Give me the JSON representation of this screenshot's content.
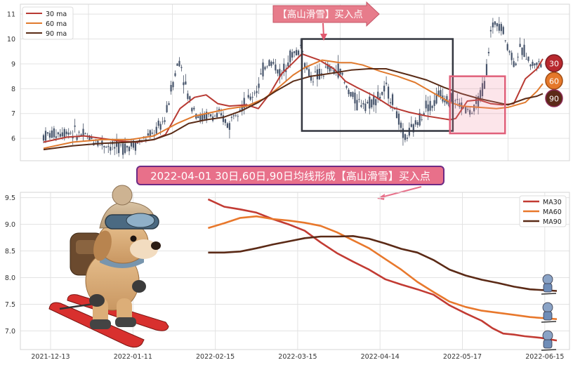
{
  "chart_data": [
    {
      "type": "line",
      "subtype": "candlestick-with-moving-averages",
      "ylim": [
        5.1,
        11.4
      ],
      "yticks": [
        6,
        7,
        8,
        9,
        10,
        11
      ],
      "grid": true,
      "legend_position": "top-left",
      "series": [
        {
          "name": "30 ma",
          "color": "#b83a33",
          "points": [
            [
              0,
              5.85
            ],
            [
              8,
              6.05
            ],
            [
              14,
              6.1
            ],
            [
              20,
              6.0
            ],
            [
              26,
              5.9
            ],
            [
              32,
              5.85
            ],
            [
              38,
              5.95
            ],
            [
              42,
              6.15
            ],
            [
              47,
              7.2
            ],
            [
              52,
              7.65
            ],
            [
              56,
              7.75
            ],
            [
              60,
              7.4
            ],
            [
              64,
              7.3
            ],
            [
              70,
              7.35
            ],
            [
              74,
              7.2
            ],
            [
              78,
              7.8
            ],
            [
              82,
              8.6
            ],
            [
              86,
              9.05
            ],
            [
              89,
              9.4
            ],
            [
              95,
              9.15
            ],
            [
              100,
              8.8
            ],
            [
              104,
              8.3
            ],
            [
              108,
              8.05
            ],
            [
              114,
              7.7
            ],
            [
              120,
              7.25
            ],
            [
              126,
              7.05
            ],
            [
              132,
              6.9
            ],
            [
              140,
              6.75
            ],
            [
              142,
              6.8
            ],
            [
              146,
              7.5
            ],
            [
              150,
              7.55
            ],
            [
              154,
              7.4
            ],
            [
              158,
              7.35
            ],
            [
              162,
              7.4
            ],
            [
              166,
              8.4
            ],
            [
              170,
              8.8
            ],
            [
              172,
              9.2
            ]
          ]
        },
        {
          "name": "60 ma",
          "color": "#e07a2e",
          "points": [
            [
              0,
              5.6
            ],
            [
              10,
              5.85
            ],
            [
              20,
              5.95
            ],
            [
              30,
              5.95
            ],
            [
              38,
              6.1
            ],
            [
              46,
              6.6
            ],
            [
              52,
              6.9
            ],
            [
              58,
              7.05
            ],
            [
              64,
              7.2
            ],
            [
              70,
              7.3
            ],
            [
              76,
              7.6
            ],
            [
              80,
              7.95
            ],
            [
              86,
              8.55
            ],
            [
              90,
              8.85
            ],
            [
              96,
              9.15
            ],
            [
              102,
              9.05
            ],
            [
              106,
              9.05
            ],
            [
              110,
              8.95
            ],
            [
              116,
              8.7
            ],
            [
              122,
              8.5
            ],
            [
              128,
              8.25
            ],
            [
              134,
              7.85
            ],
            [
              140,
              7.45
            ],
            [
              144,
              7.3
            ],
            [
              150,
              7.25
            ],
            [
              156,
              7.2
            ],
            [
              160,
              7.25
            ],
            [
              166,
              7.45
            ],
            [
              170,
              7.9
            ],
            [
              172,
              8.2
            ]
          ]
        },
        {
          "name": "90 ma",
          "color": "#5a2c17",
          "points": [
            [
              0,
              5.55
            ],
            [
              10,
              5.7
            ],
            [
              20,
              5.8
            ],
            [
              30,
              5.85
            ],
            [
              38,
              5.95
            ],
            [
              44,
              6.2
            ],
            [
              50,
              6.6
            ],
            [
              56,
              6.75
            ],
            [
              62,
              6.85
            ],
            [
              68,
              7.1
            ],
            [
              74,
              7.45
            ],
            [
              80,
              7.9
            ],
            [
              86,
              8.3
            ],
            [
              92,
              8.5
            ],
            [
              98,
              8.6
            ],
            [
              106,
              8.75
            ],
            [
              112,
              8.8
            ],
            [
              118,
              8.8
            ],
            [
              126,
              8.55
            ],
            [
              132,
              8.35
            ],
            [
              138,
              8.05
            ],
            [
              144,
              7.8
            ],
            [
              150,
              7.6
            ],
            [
              156,
              7.45
            ],
            [
              160,
              7.35
            ],
            [
              166,
              7.6
            ],
            [
              170,
              7.7
            ],
            [
              172,
              7.8
            ]
          ]
        }
      ],
      "price_envelope": {
        "x": [
          0,
          8,
          14,
          20,
          26,
          32,
          38,
          42,
          44,
          46,
          47,
          48,
          50,
          52,
          54,
          56,
          58,
          60,
          62,
          64,
          66,
          70,
          74,
          76,
          78,
          80,
          82,
          84,
          86,
          88,
          89,
          90,
          92,
          94,
          96,
          98,
          100,
          102,
          104,
          106,
          108,
          110,
          112,
          114,
          116,
          118,
          120,
          122,
          124,
          126,
          128,
          130,
          132,
          134,
          136,
          138,
          140,
          142,
          144,
          146,
          148,
          150,
          152,
          154,
          156,
          158,
          160,
          161,
          162,
          164,
          166,
          168,
          170,
          172
        ],
        "y": [
          6.1,
          6.3,
          6.1,
          5.8,
          5.6,
          5.8,
          6.2,
          6.8,
          8.0,
          8.9,
          9.2,
          8.6,
          7.6,
          7.2,
          6.8,
          6.9,
          6.9,
          6.9,
          6.8,
          6.5,
          7.2,
          7.4,
          8.1,
          8.9,
          9.1,
          8.9,
          8.5,
          9.2,
          9.4,
          9.5,
          9.9,
          9.0,
          8.5,
          8.5,
          8.6,
          8.8,
          8.7,
          8.8,
          8.1,
          7.8,
          7.4,
          7.5,
          7.4,
          7.6,
          7.7,
          8.0,
          7.6,
          6.9,
          6.0,
          6.2,
          6.5,
          6.9,
          7.4,
          7.3,
          7.8,
          7.7,
          7.6,
          7.5,
          7.3,
          7.1,
          7.0,
          7.6,
          8.2,
          10.2,
          10.8,
          10.5,
          9.6,
          9.5,
          9.0,
          9.5,
          9.5,
          8.9,
          9.1,
          8.8
        ]
      },
      "annotation_box_neutral": {
        "x": [
          89,
          141
        ],
        "y": [
          6.3,
          10.0
        ]
      },
      "annotation_box_pink": {
        "x": [
          140,
          159
        ],
        "y": [
          6.2,
          8.5
        ]
      },
      "annotation_label": "【高山滑雪】买入点",
      "badges": [
        "30",
        "60",
        "90"
      ]
    },
    {
      "type": "line",
      "ylim": [
        6.65,
        9.6
      ],
      "yticks": [
        7.0,
        7.5,
        8.0,
        8.5,
        9.0,
        9.5
      ],
      "xticks": [
        "2021-12-13",
        "2022-01-11",
        "2022-02-15",
        "2022-03-15",
        "2022-04-14",
        "2022-05-17",
        "2022-06-15"
      ],
      "grid": true,
      "legend_position": "top-right",
      "series": [
        {
          "name": "MA30",
          "color": "#c23b33",
          "points": [
            [
              35,
              9.47
            ],
            [
              38,
              9.33
            ],
            [
              41,
              9.28
            ],
            [
              44,
              9.22
            ],
            [
              47,
              9.1
            ],
            [
              50,
              9.0
            ],
            [
              53,
              8.88
            ],
            [
              56,
              8.66
            ],
            [
              59,
              8.46
            ],
            [
              62,
              8.3
            ],
            [
              65,
              8.15
            ],
            [
              68,
              7.97
            ],
            [
              71,
              7.87
            ],
            [
              74,
              7.78
            ],
            [
              77,
              7.68
            ],
            [
              80,
              7.48
            ],
            [
              83,
              7.33
            ],
            [
              86,
              7.19
            ],
            [
              88,
              7.05
            ],
            [
              90,
              6.95
            ],
            [
              92,
              6.93
            ],
            [
              94,
              6.9
            ],
            [
              97,
              6.87
            ],
            [
              100,
              6.82
            ]
          ]
        },
        {
          "name": "MA60",
          "color": "#e8782c",
          "points": [
            [
              35,
              8.93
            ],
            [
              38,
              9.02
            ],
            [
              41,
              9.12
            ],
            [
              44,
              9.15
            ],
            [
              47,
              9.1
            ],
            [
              50,
              9.07
            ],
            [
              53,
              9.03
            ],
            [
              56,
              8.97
            ],
            [
              59,
              8.85
            ],
            [
              62,
              8.7
            ],
            [
              65,
              8.55
            ],
            [
              68,
              8.35
            ],
            [
              71,
              8.15
            ],
            [
              74,
              7.92
            ],
            [
              77,
              7.73
            ],
            [
              80,
              7.55
            ],
            [
              83,
              7.45
            ],
            [
              86,
              7.38
            ],
            [
              89,
              7.34
            ],
            [
              92,
              7.3
            ],
            [
              95,
              7.26
            ],
            [
              100,
              7.22
            ]
          ]
        },
        {
          "name": "MA90",
          "color": "#5b2a16",
          "points": [
            [
              35,
              8.47
            ],
            [
              38,
              8.47
            ],
            [
              41,
              8.49
            ],
            [
              44,
              8.55
            ],
            [
              47,
              8.62
            ],
            [
              50,
              8.68
            ],
            [
              53,
              8.74
            ],
            [
              56,
              8.77
            ],
            [
              59,
              8.77
            ],
            [
              62,
              8.78
            ],
            [
              65,
              8.73
            ],
            [
              68,
              8.64
            ],
            [
              71,
              8.54
            ],
            [
              74,
              8.47
            ],
            [
              77,
              8.33
            ],
            [
              80,
              8.15
            ],
            [
              83,
              8.04
            ],
            [
              86,
              7.96
            ],
            [
              89,
              7.9
            ],
            [
              92,
              7.83
            ],
            [
              95,
              7.78
            ],
            [
              100,
              7.75
            ]
          ]
        }
      ]
    }
  ],
  "callout_bottom": "2022-04-01 30日,60日,90日均线形成【高山滑雪】买入点"
}
